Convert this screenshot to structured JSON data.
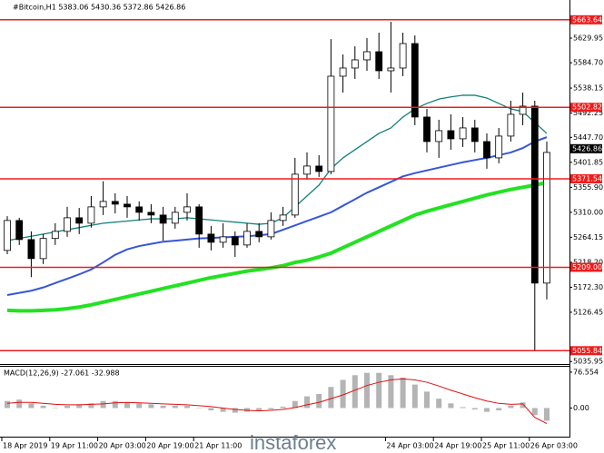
{
  "chart_data": [
    {
      "type": "candlestick",
      "title": "#Bitcoin,H1 5383.06 5430.36 5372.86 5426.86",
      "watermark": "instaforex",
      "open": [
        5240,
        5295,
        5260,
        5225,
        5262,
        5275,
        5300,
        5290,
        5320,
        5330,
        5325,
        5320,
        5310,
        5305,
        5290,
        5310,
        5320,
        5270,
        5255,
        5265,
        5250,
        5275,
        5265,
        5295,
        5305,
        5380,
        5395,
        5385,
        5560,
        5575,
        5590,
        5605,
        5570,
        5575,
        5620,
        5485,
        5440,
        5460,
        5445,
        5465,
        5440,
        5410,
        5450,
        5490,
        5505,
        5180
      ],
      "high": [
        5303,
        5300,
        5275,
        5270,
        5290,
        5320,
        5318,
        5340,
        5367,
        5345,
        5340,
        5330,
        5325,
        5320,
        5320,
        5345,
        5325,
        5285,
        5290,
        5275,
        5290,
        5290,
        5310,
        5320,
        5410,
        5420,
        5415,
        5628,
        5600,
        5615,
        5630,
        5640,
        5660,
        5640,
        5635,
        5500,
        5480,
        5490,
        5485,
        5480,
        5455,
        5465,
        5515,
        5530,
        5515,
        5440
      ],
      "low": [
        5233,
        5250,
        5191,
        5215,
        5250,
        5265,
        5270,
        5282,
        5305,
        5308,
        5300,
        5295,
        5290,
        5258,
        5280,
        5295,
        5245,
        5240,
        5245,
        5228,
        5245,
        5255,
        5260,
        5285,
        5300,
        5370,
        5375,
        5380,
        5530,
        5555,
        5570,
        5555,
        5530,
        5560,
        5470,
        5420,
        5410,
        5425,
        5430,
        5420,
        5390,
        5400,
        5440,
        5470,
        5055,
        5150
      ],
      "close": [
        5295,
        5260,
        5225,
        5262,
        5275,
        5300,
        5290,
        5320,
        5330,
        5325,
        5320,
        5310,
        5305,
        5290,
        5310,
        5320,
        5270,
        5255,
        5265,
        5250,
        5275,
        5265,
        5295,
        5305,
        5380,
        5395,
        5385,
        5560,
        5575,
        5590,
        5605,
        5570,
        5575,
        5620,
        5485,
        5440,
        5460,
        5445,
        5465,
        5440,
        5410,
        5450,
        5490,
        5505,
        5180,
        5420
      ],
      "up_color": "#ffffff",
      "down_color": "#000000",
      "overlays": [
        {
          "color": "#12807a",
          "values": [
            5258,
            5262,
            5266,
            5270,
            5274,
            5278,
            5282,
            5286,
            5290,
            5292,
            5294,
            5296,
            5298,
            5298,
            5298,
            5300,
            5298,
            5296,
            5294,
            5292,
            5290,
            5288,
            5290,
            5300,
            5320,
            5340,
            5360,
            5390,
            5410,
            5425,
            5440,
            5455,
            5465,
            5485,
            5500,
            5510,
            5518,
            5522,
            5525,
            5525,
            5520,
            5510,
            5500,
            5495,
            5475,
            5455
          ]
        },
        {
          "color": "#3556d8",
          "values": [
            5158,
            5162,
            5166,
            5172,
            5180,
            5188,
            5196,
            5205,
            5218,
            5232,
            5242,
            5248,
            5252,
            5256,
            5258,
            5260,
            5262,
            5263,
            5264,
            5265,
            5266,
            5268,
            5270,
            5278,
            5286,
            5294,
            5302,
            5310,
            5322,
            5334,
            5346,
            5356,
            5366,
            5376,
            5382,
            5387,
            5392,
            5397,
            5402,
            5406,
            5410,
            5415,
            5420,
            5428,
            5440,
            5448
          ]
        },
        {
          "color": "#22e222",
          "values": [
            5130,
            5129,
            5129,
            5130,
            5131,
            5133,
            5136,
            5140,
            5145,
            5150,
            5155,
            5160,
            5165,
            5170,
            5175,
            5180,
            5185,
            5190,
            5194,
            5198,
            5202,
            5205,
            5208,
            5212,
            5218,
            5222,
            5228,
            5235,
            5245,
            5255,
            5265,
            5275,
            5285,
            5295,
            5305,
            5312,
            5318,
            5324,
            5330,
            5336,
            5342,
            5347,
            5352,
            5356,
            5360,
            5365
          ]
        }
      ],
      "levels": [
        5663.64,
        5502.82,
        5371.54,
        {
          "value": 5209,
          "label": "5209.00"
        },
        5055.84
      ],
      "level_color": "#ee1c1c",
      "current_price": 5426.86,
      "ylim": [
        5033,
        5700
      ],
      "yticks": [
        5629.95,
        {
          "value": 5584.7,
          "label": "5584.70"
        },
        5538.15,
        5492.25,
        {
          "value": 5447.7,
          "label": "5447.70"
        },
        5401.85,
        {
          "value": 5355.9,
          "label": "5355.90"
        },
        {
          "value": 5310,
          "label": "5310.00"
        },
        5264.15,
        {
          "value": 5218.2,
          "label": "5218.20"
        },
        {
          "value": 5172.3,
          "label": "5172.30"
        },
        5126.45,
        5035.95
      ],
      "xticks": [
        {
          "value": 0,
          "label": "18 Apr 2019"
        },
        {
          "value": 4,
          "label": "19 Apr 11:00"
        },
        {
          "value": 8,
          "label": "20 Apr 03:00"
        },
        {
          "value": 12,
          "label": "20 Apr 19:00"
        },
        {
          "value": 16,
          "label": "21 Apr 11:00"
        },
        {
          "value": 32,
          "label": "24 Apr 03:00"
        },
        {
          "value": 36,
          "label": "24 Apr 19:00"
        },
        {
          "value": 40,
          "label": "25 Apr 11:00"
        },
        {
          "value": 44,
          "label": "26 Apr 03:00"
        }
      ]
    },
    {
      "type": "macd",
      "title": "MACD(12,26,9) -27.061 -32.988",
      "histogram": {
        "color": "#b4b4b4",
        "values": [
          15,
          18,
          10,
          5,
          0,
          5,
          8,
          10,
          15,
          15,
          12,
          10,
          8,
          5,
          5,
          5,
          0,
          -5,
          -8,
          -10,
          -8,
          -6,
          -3,
          3,
          15,
          25,
          30,
          45,
          60,
          70,
          75,
          75,
          70,
          65,
          50,
          35,
          20,
          10,
          2,
          -3,
          -8,
          -5,
          5,
          12,
          -15,
          -27
        ]
      },
      "signal": {
        "color": "#e01010",
        "values": [
          10,
          12,
          12,
          10,
          8,
          7,
          7,
          8,
          9,
          11,
          12,
          11,
          10,
          9,
          8,
          7,
          5,
          3,
          0,
          -3,
          -5,
          -6,
          -5,
          -3,
          1,
          7,
          12,
          20,
          28,
          38,
          48,
          55,
          60,
          62,
          60,
          55,
          47,
          38,
          30,
          22,
          15,
          10,
          8,
          9,
          -20,
          -33
        ]
      },
      "ylim": [
        -61,
        88
      ],
      "yticks": [
        76.554,
        {
          "value": 0,
          "label": "0.00"
        }
      ]
    }
  ]
}
